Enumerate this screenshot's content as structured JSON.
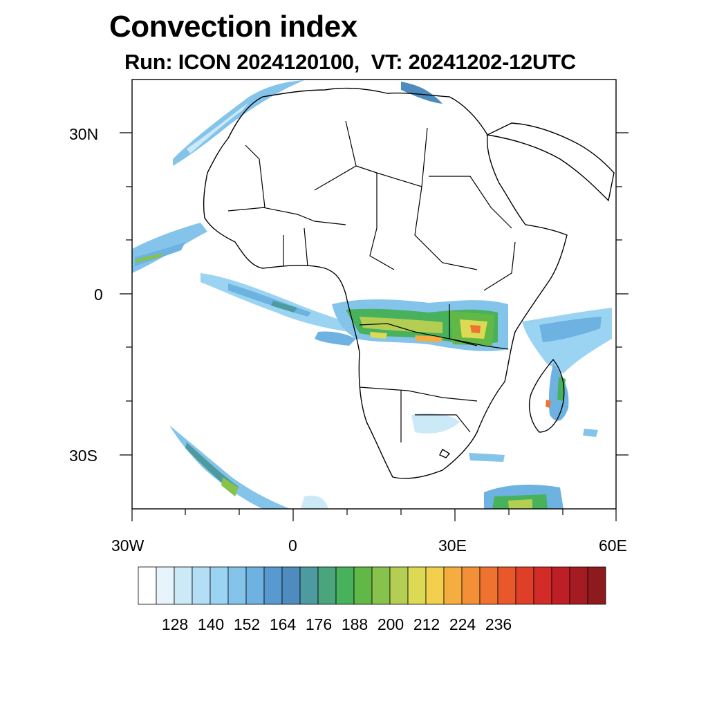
{
  "header": {
    "title": "Convection index",
    "subtitle": "Run: ICON 2024120100,  VT: 20241202-12UTC"
  },
  "map": {
    "region": "Africa",
    "variable": "Convection index",
    "extent": {
      "lon": [
        -30,
        60
      ],
      "lat": [
        -40,
        40
      ]
    },
    "lat_labels": [
      "30N",
      "0",
      "30S"
    ],
    "lon_labels": [
      "30W",
      "0",
      "30E",
      "60E"
    ]
  },
  "colorbar": {
    "colors": [
      "#ffffff",
      "#e8f4fb",
      "#cce9f7",
      "#b3def5",
      "#9ad4f2",
      "#84c4ea",
      "#6db2e0",
      "#5899d0",
      "#4e8cbf",
      "#4d9aa0",
      "#4aa57c",
      "#48b15c",
      "#61b846",
      "#86c24c",
      "#b3ce52",
      "#dcd955",
      "#f2cf4d",
      "#f6ad40",
      "#f39037",
      "#ee7330",
      "#e9582a",
      "#df3f28",
      "#d22b28",
      "#be1f27",
      "#a51b22",
      "#8d1a1d"
    ],
    "tick_labels": [
      "128",
      "140",
      "152",
      "164",
      "176",
      "188",
      "200",
      "212",
      "224",
      "236"
    ]
  }
}
